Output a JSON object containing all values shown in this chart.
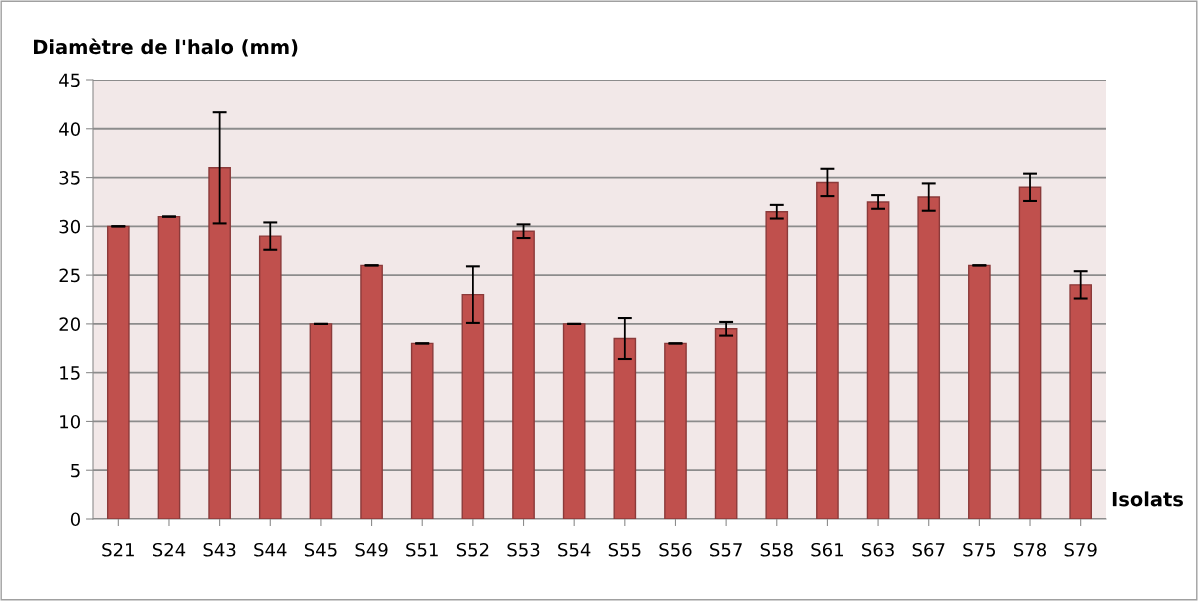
{
  "chart_data": {
    "type": "bar",
    "ylabel": "Diamètre de l'halo (mm)",
    "xlabel": "Isolats",
    "categories": [
      "S21",
      "S24",
      "S43",
      "S44",
      "S45",
      "S49",
      "S51",
      "S52",
      "S53",
      "S54",
      "S55",
      "S56",
      "S57",
      "S58",
      "S61",
      "S63",
      "S67",
      "S75",
      "S78",
      "S79"
    ],
    "values": [
      30,
      31,
      36,
      29,
      20,
      26,
      18,
      23,
      29.5,
      20,
      18.5,
      18,
      19.5,
      31.5,
      34.5,
      32.5,
      33,
      26,
      34,
      24
    ],
    "errors": [
      0,
      0,
      5.7,
      1.4,
      0,
      0,
      0,
      2.9,
      0.7,
      0,
      2.1,
      0,
      0.7,
      0.7,
      1.4,
      0.7,
      1.4,
      0,
      1.4,
      1.4
    ],
    "color": "#c0504d",
    "ylim": [
      0,
      45
    ],
    "yticks": [
      0,
      5,
      10,
      15,
      20,
      25,
      30,
      35,
      40,
      45
    ],
    "grid": "y",
    "legend": false
  }
}
